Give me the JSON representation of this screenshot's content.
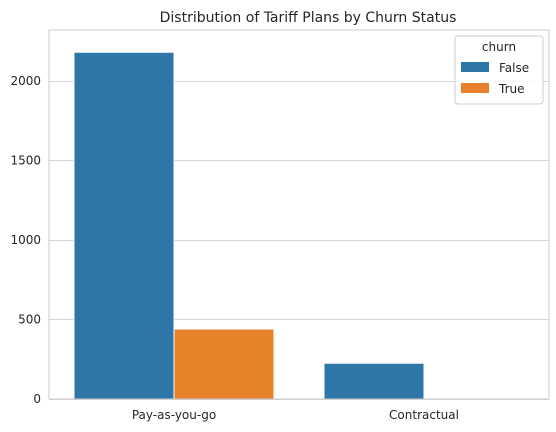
{
  "chart_data": {
    "type": "bar",
    "title": "Distribution of Tariff Plans by Churn Status",
    "xlabel": "",
    "ylabel": "",
    "categories": [
      "Pay-as-you-go",
      "Contractual"
    ],
    "series": [
      {
        "name": "False",
        "values": [
          2180,
          225
        ],
        "color": "#2e75a8"
      },
      {
        "name": "True",
        "values": [
          440,
          0
        ],
        "color": "#e8822a"
      }
    ],
    "ylim": [
      0,
      2320
    ],
    "yticks": [
      0,
      500,
      1000,
      1500,
      2000
    ],
    "grid": true,
    "legend": {
      "title": "churn",
      "placement": "top-right"
    }
  }
}
